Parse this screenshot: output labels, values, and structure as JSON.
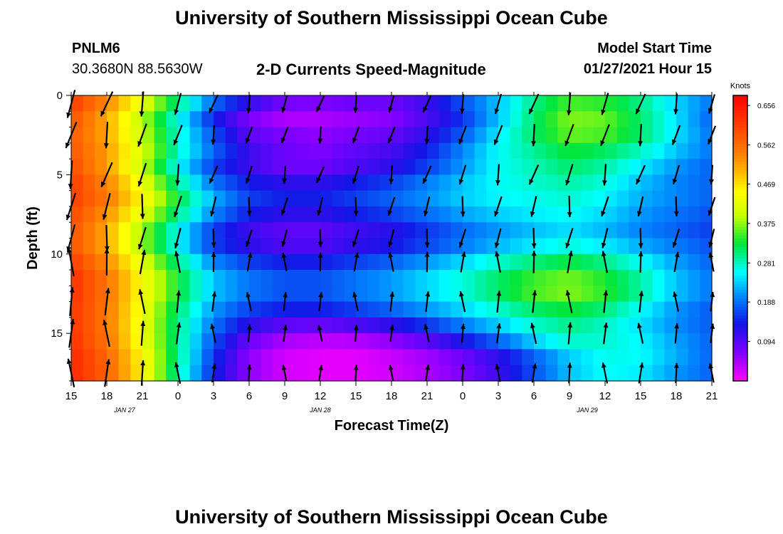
{
  "header": {
    "title": "University of Southern Mississippi Ocean Cube",
    "station": "PNLM6",
    "coords": "30.3680N 88.5630W",
    "subtitle": "2-D Currents Speed-Magnitude",
    "start_label": "Model Start Time",
    "start_value": "01/27/2021 Hour 15"
  },
  "footer": {
    "title": "University of Southern Mississippi Ocean Cube"
  },
  "chart_data": {
    "type": "heatmap",
    "xlabel": "Forecast Time(Z)",
    "ylabel": "Depth (ft)",
    "x_range_hours": [
      0,
      54
    ],
    "y_range_ft": [
      0,
      18
    ],
    "y_ticks": [
      0,
      5,
      10,
      15
    ],
    "x_ticks": [
      "15",
      "18",
      "21",
      "0",
      "3",
      "6",
      "9",
      "12",
      "15",
      "18",
      "21",
      "0",
      "3",
      "6",
      "9",
      "12",
      "15",
      "18",
      "21"
    ],
    "date_labels": [
      {
        "text": "JAN  27",
        "hour": 4.5
      },
      {
        "text": "JAN  28",
        "hour": 21
      },
      {
        "text": "JAN  29",
        "hour": 43.5
      }
    ],
    "colorbar": {
      "unit": "Knots",
      "min": 0.0,
      "max": 0.68,
      "tick_values": [
        0.656,
        0.562,
        0.469,
        0.375,
        0.281,
        0.188,
        0.094
      ],
      "tick_labels": [
        "0.656",
        "0.562",
        "0.469",
        "0.375",
        "0.281",
        "0.188",
        "0.094"
      ]
    },
    "speed_profile_knots": {
      "depths_ft": [
        0,
        1,
        2,
        3,
        4,
        5,
        6,
        7,
        8,
        9,
        10,
        11,
        12,
        13,
        14,
        15,
        16,
        17,
        18
      ],
      "times_hours": [
        0,
        3,
        6,
        9,
        12,
        15,
        18,
        21,
        24,
        27,
        30,
        33,
        36,
        39,
        42,
        45,
        48,
        51,
        54
      ],
      "values": [
        [
          0.62,
          0.55,
          0.45,
          0.32,
          0.22,
          0.15,
          0.1,
          0.09,
          0.1,
          0.09,
          0.12,
          0.18,
          0.24,
          0.3,
          0.34,
          0.33,
          0.3,
          0.24,
          0.2
        ],
        [
          0.6,
          0.52,
          0.4,
          0.28,
          0.15,
          0.08,
          0.05,
          0.05,
          0.06,
          0.07,
          0.1,
          0.16,
          0.22,
          0.3,
          0.36,
          0.35,
          0.3,
          0.24,
          0.18
        ],
        [
          0.58,
          0.5,
          0.38,
          0.25,
          0.14,
          0.06,
          0.04,
          0.04,
          0.05,
          0.06,
          0.1,
          0.15,
          0.24,
          0.32,
          0.38,
          0.37,
          0.32,
          0.25,
          0.18
        ],
        [
          0.58,
          0.52,
          0.42,
          0.3,
          0.2,
          0.12,
          0.1,
          0.08,
          0.1,
          0.11,
          0.14,
          0.2,
          0.26,
          0.3,
          0.34,
          0.33,
          0.3,
          0.24,
          0.2
        ],
        [
          0.59,
          0.52,
          0.4,
          0.26,
          0.16,
          0.1,
          0.06,
          0.06,
          0.08,
          0.1,
          0.14,
          0.2,
          0.26,
          0.29,
          0.32,
          0.3,
          0.26,
          0.22,
          0.18
        ],
        [
          0.6,
          0.52,
          0.4,
          0.26,
          0.16,
          0.12,
          0.1,
          0.1,
          0.12,
          0.14,
          0.18,
          0.22,
          0.26,
          0.28,
          0.3,
          0.28,
          0.24,
          0.2,
          0.18
        ],
        [
          0.62,
          0.56,
          0.46,
          0.33,
          0.22,
          0.16,
          0.14,
          0.14,
          0.16,
          0.18,
          0.21,
          0.24,
          0.26,
          0.27,
          0.28,
          0.26,
          0.22,
          0.2,
          0.18
        ],
        [
          0.6,
          0.54,
          0.44,
          0.32,
          0.22,
          0.16,
          0.14,
          0.14,
          0.16,
          0.18,
          0.2,
          0.23,
          0.25,
          0.26,
          0.27,
          0.25,
          0.22,
          0.2,
          0.18
        ],
        [
          0.6,
          0.52,
          0.4,
          0.28,
          0.18,
          0.12,
          0.1,
          0.1,
          0.12,
          0.14,
          0.17,
          0.2,
          0.22,
          0.24,
          0.25,
          0.23,
          0.2,
          0.18,
          0.16
        ],
        [
          0.58,
          0.5,
          0.36,
          0.24,
          0.14,
          0.1,
          0.08,
          0.08,
          0.1,
          0.11,
          0.14,
          0.17,
          0.2,
          0.22,
          0.24,
          0.22,
          0.2,
          0.18,
          0.16
        ],
        [
          0.6,
          0.52,
          0.4,
          0.28,
          0.18,
          0.14,
          0.12,
          0.12,
          0.14,
          0.16,
          0.19,
          0.22,
          0.25,
          0.28,
          0.3,
          0.28,
          0.24,
          0.21,
          0.18
        ],
        [
          0.62,
          0.55,
          0.44,
          0.32,
          0.22,
          0.18,
          0.16,
          0.16,
          0.18,
          0.2,
          0.23,
          0.26,
          0.3,
          0.33,
          0.35,
          0.32,
          0.28,
          0.22,
          0.18
        ],
        [
          0.63,
          0.56,
          0.45,
          0.34,
          0.24,
          0.2,
          0.18,
          0.18,
          0.2,
          0.22,
          0.25,
          0.28,
          0.32,
          0.36,
          0.38,
          0.35,
          0.3,
          0.24,
          0.2
        ],
        [
          0.62,
          0.55,
          0.44,
          0.32,
          0.22,
          0.18,
          0.16,
          0.16,
          0.18,
          0.2,
          0.23,
          0.26,
          0.3,
          0.34,
          0.36,
          0.33,
          0.28,
          0.22,
          0.18
        ],
        [
          0.62,
          0.55,
          0.43,
          0.3,
          0.2,
          0.14,
          0.12,
          0.12,
          0.14,
          0.16,
          0.19,
          0.22,
          0.25,
          0.28,
          0.3,
          0.28,
          0.24,
          0.2,
          0.17
        ],
        [
          0.62,
          0.55,
          0.43,
          0.3,
          0.18,
          0.1,
          0.06,
          0.05,
          0.06,
          0.08,
          0.12,
          0.17,
          0.22,
          0.27,
          0.3,
          0.28,
          0.25,
          0.21,
          0.18
        ],
        [
          0.63,
          0.56,
          0.44,
          0.3,
          0.16,
          0.06,
          0.03,
          0.02,
          0.02,
          0.04,
          0.06,
          0.1,
          0.14,
          0.2,
          0.25,
          0.27,
          0.26,
          0.22,
          0.18
        ],
        [
          0.64,
          0.58,
          0.46,
          0.3,
          0.15,
          0.06,
          0.02,
          0.01,
          0.01,
          0.02,
          0.04,
          0.06,
          0.1,
          0.16,
          0.22,
          0.26,
          0.26,
          0.22,
          0.18
        ],
        [
          0.63,
          0.57,
          0.45,
          0.28,
          0.14,
          0.06,
          0.03,
          0.02,
          0.02,
          0.03,
          0.05,
          0.08,
          0.12,
          0.18,
          0.24,
          0.26,
          0.24,
          0.2,
          0.18
        ]
      ]
    },
    "current_vectors": {
      "note": "representative direction per (time, depth) in compass degrees (0 = up/north); arrow length follows speed",
      "dir_by_depth_deg": {
        "surface_0_6ft": 195,
        "mid_6_10ft": 190,
        "deep_10_18ft": 0
      }
    }
  }
}
